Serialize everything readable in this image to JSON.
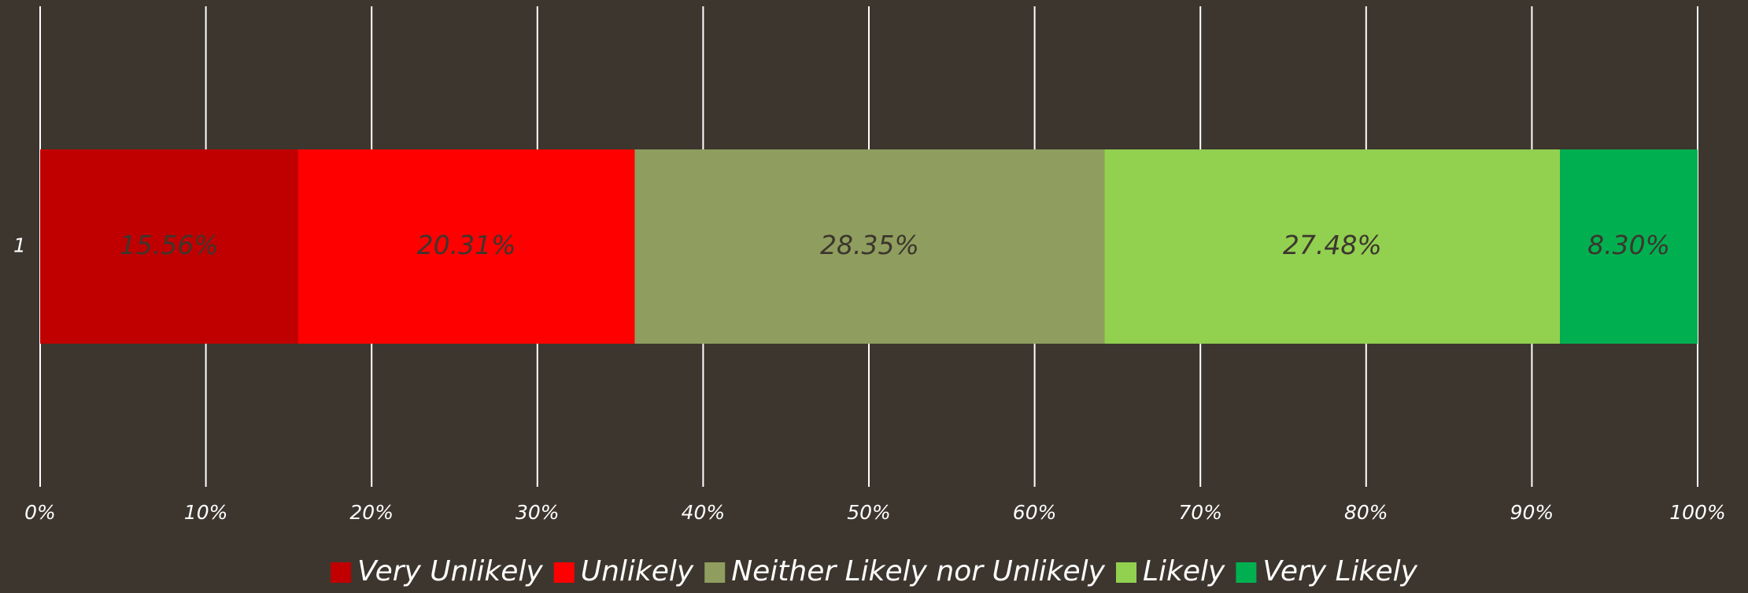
{
  "chart_data": {
    "type": "bar",
    "orientation": "horizontal",
    "stacked": true,
    "categories": [
      "1"
    ],
    "series": [
      {
        "name": "Very Unlikely",
        "color": "#c00000",
        "values": [
          15.56
        ],
        "value_labels": [
          "15.56%"
        ]
      },
      {
        "name": "Unlikely",
        "color": "#ff0000",
        "values": [
          20.31
        ],
        "value_labels": [
          "20.31%"
        ]
      },
      {
        "name": "Neither Likely nor Unlikely",
        "color": "#8f9e5e",
        "values": [
          28.35
        ],
        "value_labels": [
          "28.35%"
        ]
      },
      {
        "name": "Likely",
        "color": "#92d050",
        "values": [
          27.48
        ],
        "value_labels": [
          "27.48%"
        ]
      },
      {
        "name": "Very Likely",
        "color": "#00b050",
        "values": [
          8.3
        ],
        "value_labels": [
          "8.30%"
        ]
      }
    ],
    "xlim": [
      0,
      100
    ],
    "xticks": [
      {
        "value": 0,
        "label": "0%"
      },
      {
        "value": 10,
        "label": "10%"
      },
      {
        "value": 20,
        "label": "20%"
      },
      {
        "value": 30,
        "label": "30%"
      },
      {
        "value": 40,
        "label": "40%"
      },
      {
        "value": 50,
        "label": "50%"
      },
      {
        "value": 60,
        "label": "60%"
      },
      {
        "value": 70,
        "label": "70%"
      },
      {
        "value": 80,
        "label": "80%"
      },
      {
        "value": 90,
        "label": "90%"
      },
      {
        "value": 100,
        "label": "100%"
      }
    ],
    "grid": true,
    "legend": "bottom"
  }
}
